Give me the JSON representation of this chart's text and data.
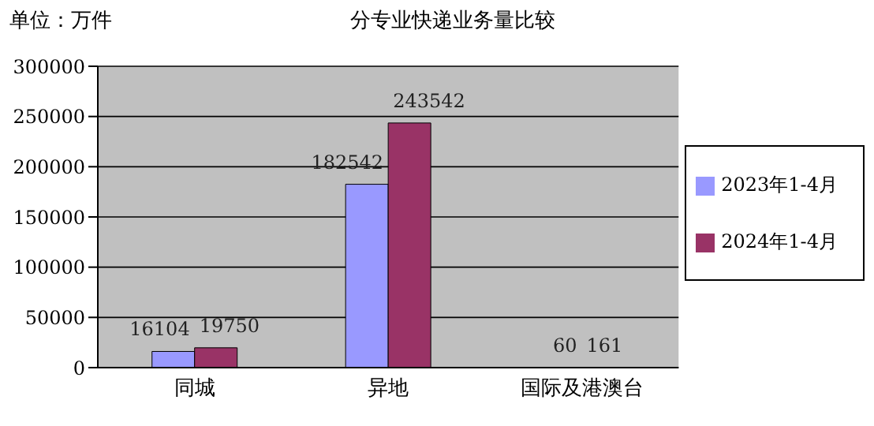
{
  "chart_data": {
    "type": "bar",
    "title": "分专业快递业务量比较",
    "annotations": [
      "单位：万件"
    ],
    "categories": [
      "同城",
      "异地",
      "国际及港澳台"
    ],
    "series": [
      {
        "name": "2023年1-4月",
        "color": "#9999ff",
        "values": [
          16104,
          182542,
          60
        ]
      },
      {
        "name": "2024年1-4月",
        "color": "#993366",
        "values": [
          19750,
          243542,
          161
        ]
      }
    ],
    "ylim": [
      0,
      300000
    ],
    "yticks": [
      0,
      50000,
      100000,
      150000,
      200000,
      250000,
      300000
    ],
    "grid": "y",
    "legend": "right",
    "data_labels": true
  }
}
